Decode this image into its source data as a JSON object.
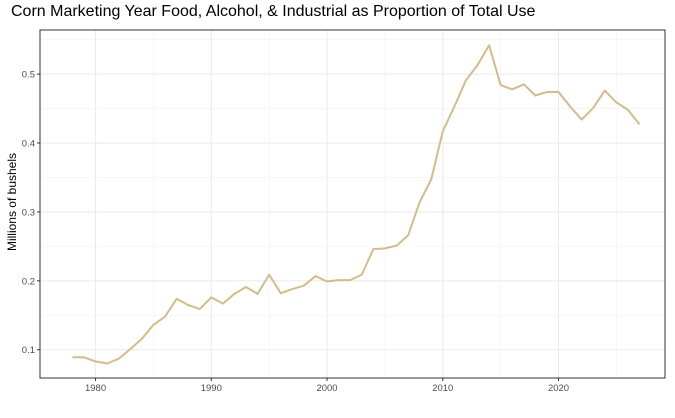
{
  "chart_data": {
    "type": "line",
    "title": "Corn Marketing Year Food, Alcohol, & Industrial as Proportion of Total Use",
    "xlabel": "",
    "ylabel": "Millions of bushels",
    "xlim": [
      1975.2,
      2029.2
    ],
    "ylim": [
      0.059,
      0.564
    ],
    "xticks": [
      1980,
      1990,
      2000,
      2010,
      2020
    ],
    "yticks": [
      0.1,
      0.2,
      0.3,
      0.4,
      0.5
    ],
    "ytick_labels": [
      "0.1",
      "0.2",
      "0.3",
      "0.4",
      "0.5"
    ],
    "grid": true,
    "line_color": "#d4bc8a",
    "x": [
      1978,
      1979,
      1980,
      1981,
      1982,
      1983,
      1984,
      1985,
      1986,
      1987,
      1988,
      1989,
      1990,
      1991,
      1992,
      1993,
      1994,
      1995,
      1996,
      1997,
      1998,
      1999,
      2000,
      2001,
      2002,
      2003,
      2004,
      2005,
      2006,
      2007,
      2008,
      2009,
      2010,
      2011,
      2012,
      2013,
      2014,
      2015,
      2016,
      2017,
      2018,
      2019,
      2020,
      2021,
      2022,
      2023,
      2024,
      2025,
      2026,
      2027
    ],
    "y": [
      0.089,
      0.089,
      0.083,
      0.08,
      0.087,
      0.101,
      0.116,
      0.136,
      0.148,
      0.174,
      0.165,
      0.159,
      0.176,
      0.167,
      0.181,
      0.191,
      0.181,
      0.209,
      0.182,
      0.188,
      0.193,
      0.207,
      0.199,
      0.201,
      0.201,
      0.209,
      0.246,
      0.247,
      0.251,
      0.266,
      0.314,
      0.347,
      0.417,
      0.453,
      0.491,
      0.513,
      0.542,
      0.484,
      0.478,
      0.485,
      0.469,
      0.474,
      0.474,
      0.453,
      0.434,
      0.451,
      0.476,
      0.459,
      0.448,
      0.427
    ]
  }
}
